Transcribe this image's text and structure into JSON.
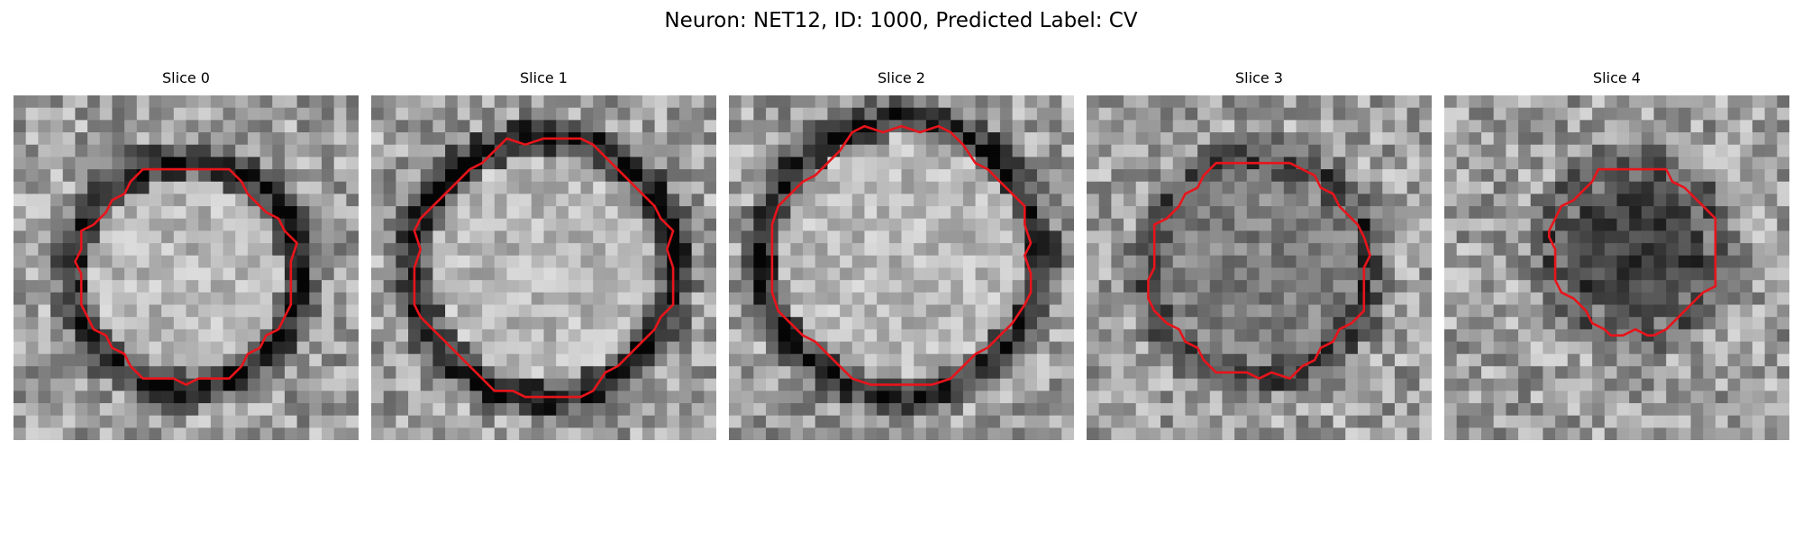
{
  "figure": {
    "title": "Neuron: NET12, ID: 1000, Predicted Label: CV"
  },
  "contour_color": "#e8141b",
  "slices": [
    {
      "title": "Slice 0",
      "seed": 11,
      "ring_radius": 0.33,
      "ring_center": [
        0.5,
        0.52
      ],
      "outline_radius": 0.31,
      "interior": "light",
      "ring_strength": 0.55
    },
    {
      "title": "Slice 1",
      "seed": 23,
      "ring_radius": 0.38,
      "ring_center": [
        0.5,
        0.5
      ],
      "outline_radius": 0.37,
      "interior": "light",
      "ring_strength": 0.6
    },
    {
      "title": "Slice 2",
      "seed": 37,
      "ring_radius": 0.4,
      "ring_center": [
        0.5,
        0.47
      ],
      "outline_radius": 0.37,
      "interior": "light",
      "ring_strength": 0.55
    },
    {
      "title": "Slice 3",
      "seed": 53,
      "ring_radius": 0.32,
      "ring_center": [
        0.5,
        0.5
      ],
      "outline_radius": 0.31,
      "interior": "medium",
      "ring_strength": 0.4
    },
    {
      "title": "Slice 4",
      "seed": 71,
      "ring_radius": 0.25,
      "ring_center": [
        0.55,
        0.45
      ],
      "outline_radius": 0.24,
      "interior": "dark",
      "ring_strength": 0.3
    }
  ]
}
